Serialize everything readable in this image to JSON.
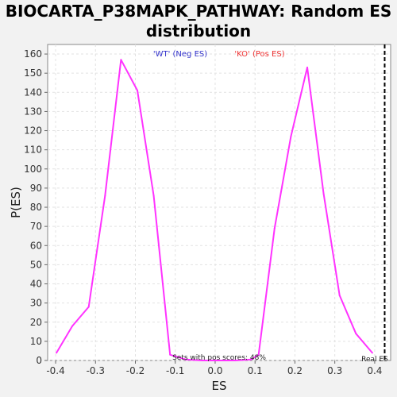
{
  "chart_data": {
    "type": "line",
    "title": "BIOCARTA_P38MAPK_PATHWAY: Random ES distribution",
    "xlabel": "ES",
    "ylabel": "P(ES)",
    "xlim": [
      -0.42,
      0.44
    ],
    "ylim": [
      0,
      165
    ],
    "x_ticks": [
      -0.4,
      -0.3,
      -0.2,
      -0.1,
      0.0,
      0.1,
      0.2,
      0.3,
      0.4
    ],
    "x_tick_labels": [
      "-0.4",
      "-0.3",
      "-0.2",
      "-0.1",
      "0.0",
      "0.1",
      "0.2",
      "0.3",
      "0.4"
    ],
    "y_ticks": [
      0,
      10,
      20,
      30,
      40,
      50,
      60,
      70,
      80,
      90,
      100,
      110,
      120,
      130,
      140,
      150,
      160
    ],
    "y_tick_labels": [
      "0",
      "10",
      "20",
      "30",
      "40",
      "50",
      "60",
      "70",
      "80",
      "90",
      "100",
      "110",
      "120",
      "130",
      "140",
      "150",
      "160"
    ],
    "grid": true,
    "series": [
      {
        "color": "#ff33ff",
        "x": [
          -0.398,
          -0.358,
          -0.317,
          -0.276,
          -0.236,
          -0.195,
          -0.154,
          -0.113,
          -0.073,
          -0.032,
          0.009,
          0.05,
          0.09,
          0.109,
          0.149,
          0.19,
          0.231,
          0.272,
          0.312,
          0.353,
          0.394
        ],
        "y": [
          4,
          18,
          28,
          86,
          157,
          141,
          86,
          3,
          0.5,
          0,
          0,
          0,
          0.5,
          3,
          69,
          117,
          153,
          87,
          34,
          14,
          4
        ]
      }
    ],
    "legend": [
      {
        "label": "'WT' (Neg ES)",
        "color": "#3333cc"
      },
      {
        "label": "'KO' (Pos ES)",
        "color": "#ee3333"
      }
    ],
    "legend_placement": "top-center",
    "annotations": {
      "pos_scores_text": "Sets with pos scores: 48%",
      "real_es_label": "Real ES",
      "real_es_x": 0.425
    }
  }
}
